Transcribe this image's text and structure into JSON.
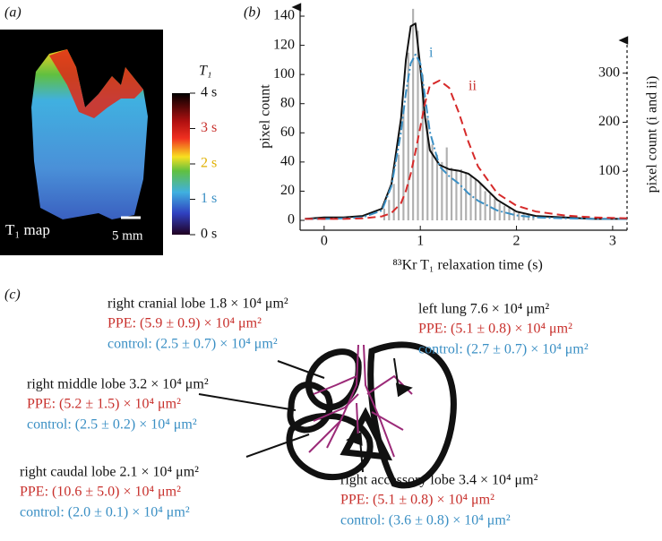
{
  "panel_a": {
    "label": "(a)",
    "colorbar_title": "T₁",
    "colorbar_labels": [
      "4 s",
      "3 s",
      "2 s",
      "1 s",
      "0 s"
    ],
    "map_label": "T₁ map",
    "scale_label": "5 mm"
  },
  "chart_data": {
    "type": "line",
    "panel_label": "(b)",
    "xlabel": "⁸³Kr T₁ relaxation time (s)",
    "ylabel": "pixel count",
    "y2label": "pixel count (i and ii)",
    "xlim": [
      -0.25,
      3.15
    ],
    "xticks": [
      0,
      1,
      2,
      3
    ],
    "ylim": [
      0,
      148
    ],
    "yticks": [
      0,
      20,
      40,
      60,
      80,
      100,
      120,
      140
    ],
    "y2lim": [
      0,
      440
    ],
    "y2ticks": [
      100,
      200,
      300
    ],
    "histogram": {
      "color": "#b0b0b0",
      "bins": [
        0.6,
        0.65,
        0.7,
        0.75,
        0.8,
        0.85,
        0.9,
        0.95,
        1.0,
        1.05,
        1.1,
        1.15,
        1.2,
        1.25,
        1.3,
        1.35,
        1.4,
        1.45,
        1.5,
        1.55,
        1.6,
        1.65,
        1.7,
        1.75,
        1.8,
        1.85,
        1.9,
        1.95,
        2.0,
        2.05,
        2.1,
        2.15,
        2.2
      ],
      "counts": [
        8,
        14,
        25,
        45,
        75,
        115,
        145,
        130,
        100,
        70,
        52,
        45,
        40,
        50,
        36,
        34,
        35,
        33,
        30,
        28,
        25,
        20,
        18,
        15,
        12,
        10,
        9,
        7,
        6,
        5,
        4,
        3
      ]
    },
    "x": [
      -0.2,
      0,
      0.2,
      0.4,
      0.6,
      0.7,
      0.8,
      0.85,
      0.9,
      0.95,
      1.0,
      1.05,
      1.1,
      1.2,
      1.3,
      1.4,
      1.5,
      1.6,
      1.8,
      2.0,
      2.2,
      2.5,
      2.8,
      3.15
    ],
    "series": [
      {
        "color": "#111111",
        "values": [
          1,
          2,
          2,
          3,
          8,
          25,
          70,
          110,
          133,
          135,
          105,
          70,
          48,
          38,
          35,
          34,
          32,
          27,
          14,
          6,
          3,
          2,
          1,
          1
        ]
      },
      {
        "name": "i",
        "color": "#3a8fc4",
        "axis": "y2",
        "values": [
          3,
          3,
          4,
          6,
          20,
          70,
          180,
          260,
          320,
          338,
          320,
          250,
          180,
          110,
          90,
          75,
          55,
          40,
          20,
          10,
          6,
          4,
          3,
          3
        ]
      },
      {
        "name": "ii",
        "color": "#d62a2a",
        "axis": "y2",
        "values": [
          3,
          3,
          3,
          4,
          8,
          15,
          35,
          60,
          95,
          140,
          190,
          240,
          275,
          285,
          270,
          220,
          160,
          110,
          55,
          30,
          18,
          10,
          6,
          4
        ]
      }
    ]
  },
  "panel_c": {
    "label": "(c)",
    "lobes": [
      {
        "name": "right cranial lobe 1.8 × 10⁴ μm²",
        "ppe": "PPE: (5.9 ± 0.9) × 10⁴ μm²",
        "control": "control: (2.5 ± 0.7) × 10⁴ μm²"
      },
      {
        "name": "left lung 7.6 × 10⁴ μm²",
        "ppe": "PPE: (5.1 ± 0.8) × 10⁴ μm²",
        "control": "control: (2.7 ± 0.7) × 10⁴ μm²"
      },
      {
        "name": "right middle lobe 3.2 × 10⁴ μm²",
        "ppe": "PPE: (5.2 ± 1.5) × 10⁴ μm²",
        "control": "control: (2.5 ± 0.2) × 10⁴ μm²"
      },
      {
        "name": "right caudal lobe 2.1 × 10⁴ μm²",
        "ppe": "PPE: (10.6 ± 5.0) × 10⁴ μm²",
        "control": "control: (2.0 ± 0.1) × 10⁴ μm²"
      },
      {
        "name": "right accessory lobe 3.4 × 10⁴ μm²",
        "ppe": "PPE: (5.1 ± 0.8) × 10⁴ μm²",
        "control": "control: (3.6 ± 0.8) × 10⁴ μm²"
      }
    ]
  }
}
